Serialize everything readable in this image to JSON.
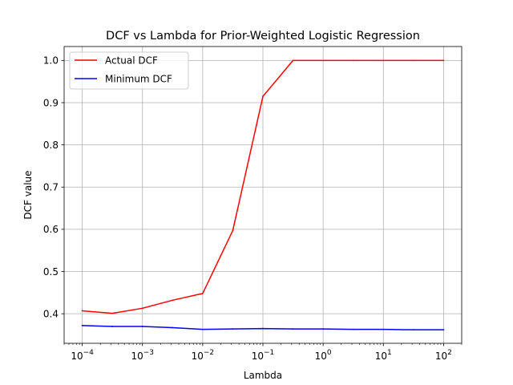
{
  "chart_data": {
    "type": "line",
    "title": "DCF vs Lambda for Prior-Weighted Logistic Regression",
    "xlabel": "Lambda",
    "ylabel": "DCF value",
    "xscale": "log",
    "xlim": [
      5e-05,
      200
    ],
    "ylim": [
      0.33,
      1.033
    ],
    "grid": true,
    "legend_position": "top-left",
    "x_tick_labels": [
      {
        "value": 0.0001,
        "base": "10",
        "exp": "−4"
      },
      {
        "value": 0.001,
        "base": "10",
        "exp": "−3"
      },
      {
        "value": 0.01,
        "base": "10",
        "exp": "−2"
      },
      {
        "value": 0.1,
        "base": "10",
        "exp": "−1"
      },
      {
        "value": 1,
        "base": "10",
        "exp": "0"
      },
      {
        "value": 10,
        "base": "10",
        "exp": "1"
      },
      {
        "value": 100,
        "base": "10",
        "exp": "2"
      }
    ],
    "y_ticks": [
      0.4,
      0.5,
      0.6,
      0.7,
      0.8,
      0.9,
      1.0
    ],
    "y_tick_labels": [
      "0.4",
      "0.5",
      "0.6",
      "0.7",
      "0.8",
      "0.9",
      "1.0"
    ],
    "x": [
      0.0001,
      0.000316,
      0.001,
      0.00316,
      0.01,
      0.0316,
      0.1,
      0.316,
      1,
      3.16,
      10,
      31.6,
      100
    ],
    "series": [
      {
        "name": "Actual DCF",
        "color": "#ff0000",
        "values": [
          0.407,
          0.401,
          0.413,
          0.432,
          0.448,
          0.597,
          0.915,
          1.0,
          1.0,
          1.0,
          1.0,
          1.0,
          1.0
        ]
      },
      {
        "name": "Minimum DCF",
        "color": "#0000ff",
        "values": [
          0.372,
          0.37,
          0.37,
          0.367,
          0.363,
          0.364,
          0.365,
          0.364,
          0.364,
          0.363,
          0.363,
          0.362,
          0.362
        ]
      }
    ]
  }
}
